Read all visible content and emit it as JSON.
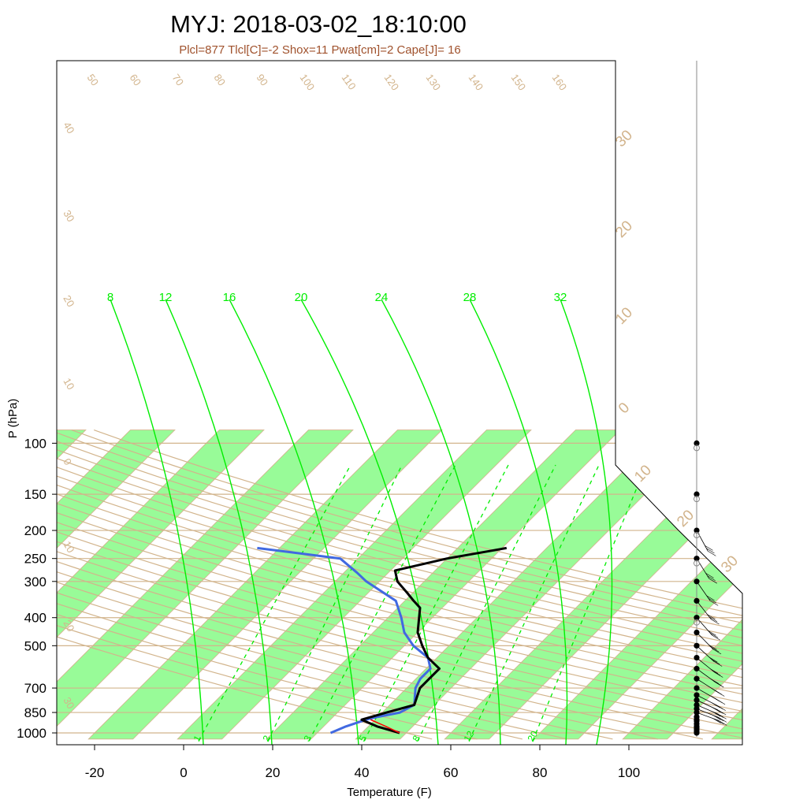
{
  "title": "MYJ: 2018-03-02_18:10:00",
  "subtitle": "Plcl=877 Tlcl[C]=-2 Shox=11 Pwat[cm]=2 Cape[J]= 16",
  "colors": {
    "isotherm_band": "#98fb98",
    "background_lines": "#d2b48c",
    "mixing_ratio": "#00ee00",
    "temperature": "#000000",
    "dewpoint": "#4169e1",
    "parcel": "#ff0000",
    "subtitle": "#a0522d"
  },
  "chart_data": {
    "type": "skew-t",
    "xlabel": "Temperature (F)",
    "ylabel": "P (hPa)",
    "x_ticks": [
      "-20",
      "0",
      "20",
      "40",
      "60",
      "80",
      "100"
    ],
    "y_ticks": [
      "100",
      "150",
      "200",
      "250",
      "300",
      "400",
      "500",
      "700",
      "850",
      "1000"
    ],
    "isotherm_labels_right": [
      "30",
      "20",
      "10",
      "0",
      "10",
      "20",
      "30"
    ],
    "isotherm_labels_left": [
      "40",
      "30",
      "20",
      "10",
      "0",
      "10",
      "20",
      "30"
    ],
    "adiabat_labels_top": [
      "50",
      "60",
      "70",
      "80",
      "90",
      "100",
      "110",
      "120",
      "130",
      "140",
      "150",
      "160"
    ],
    "mixing_ratio_labels_top": [
      "8",
      "12",
      "16",
      "20",
      "24",
      "28",
      "32"
    ],
    "dashed_labels_bottom": [
      "1",
      "2",
      "3",
      "5",
      "8",
      "12",
      "20"
    ],
    "temperature_F": [
      {
        "p": 1000,
        "t": 48.5
      },
      {
        "p": 950,
        "t": 42
      },
      {
        "p": 900,
        "t": 37
      },
      {
        "p": 850,
        "t": 41
      },
      {
        "p": 800,
        "t": 45.5
      },
      {
        "p": 700,
        "t": 43
      },
      {
        "p": 650,
        "t": 43
      },
      {
        "p": 600,
        "t": 43
      },
      {
        "p": 550,
        "t": 38
      },
      {
        "p": 500,
        "t": 34
      },
      {
        "p": 450,
        "t": 30
      },
      {
        "p": 400,
        "t": 27
      },
      {
        "p": 370,
        "t": 25
      },
      {
        "p": 350,
        "t": 22
      },
      {
        "p": 330,
        "t": 19
      },
      {
        "p": 300,
        "t": 14
      },
      {
        "p": 275,
        "t": 11
      },
      {
        "p": 250,
        "t": 20
      },
      {
        "p": 230,
        "t": 31
      }
    ],
    "dewpoint_F": [
      {
        "p": 1000,
        "t": 33
      },
      {
        "p": 950,
        "t": 35
      },
      {
        "p": 900,
        "t": 38
      },
      {
        "p": 880,
        "t": 40
      },
      {
        "p": 850,
        "t": 44
      },
      {
        "p": 800,
        "t": 45.5
      },
      {
        "p": 700,
        "t": 42
      },
      {
        "p": 650,
        "t": 41
      },
      {
        "p": 600,
        "t": 41
      },
      {
        "p": 550,
        "t": 38
      },
      {
        "p": 500,
        "t": 32
      },
      {
        "p": 450,
        "t": 27
      },
      {
        "p": 400,
        "t": 23
      },
      {
        "p": 350,
        "t": 18
      },
      {
        "p": 300,
        "t": 7
      },
      {
        "p": 280,
        "t": 3
      },
      {
        "p": 250,
        "t": -4
      },
      {
        "p": 230,
        "t": -25
      }
    ],
    "parcel_F": [
      {
        "p": 1000,
        "t": 48.5
      },
      {
        "p": 950,
        "t": 44
      },
      {
        "p": 900,
        "t": 39
      }
    ],
    "wind_levels_hPa": [
      1000,
      990,
      975,
      960,
      950,
      930,
      910,
      900,
      880,
      850,
      825,
      800,
      770,
      740,
      700,
      650,
      600,
      550,
      500,
      450,
      400,
      350,
      300,
      250,
      200,
      150,
      100
    ]
  }
}
